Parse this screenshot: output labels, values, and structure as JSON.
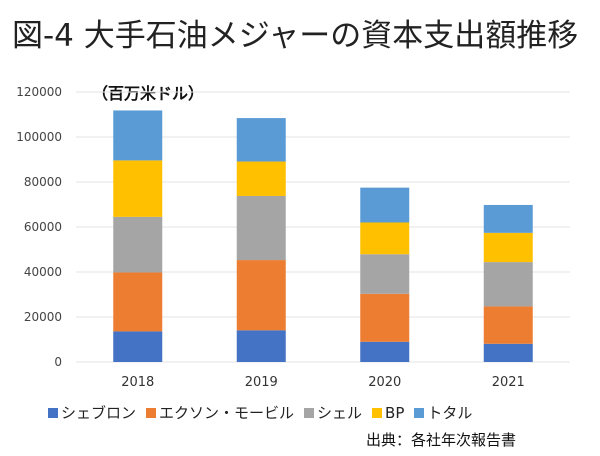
{
  "title": "図-4 大手石油メジャーの資本支出額推移",
  "unit_label": "（百万米ドル）",
  "source": "出典：各社年次報告書",
  "chart_data": {
    "type": "bar",
    "stacked": true,
    "categories": [
      "2018",
      "2019",
      "2020",
      "2021"
    ],
    "ylim": [
      0,
      120000
    ],
    "yticks": [
      0,
      20000,
      40000,
      60000,
      80000,
      100000,
      120000
    ],
    "grid": true,
    "legend_position": "bottom",
    "series": [
      {
        "name": "シェブロン",
        "color": "#4472C4",
        "values": [
          13600,
          14100,
          9000,
          8100
        ]
      },
      {
        "name": "エクソン・モービル",
        "color": "#ED7D31",
        "values": [
          26200,
          31200,
          21300,
          16600
        ]
      },
      {
        "name": "シェル",
        "color": "#A5A5A5",
        "values": [
          24700,
          28500,
          17600,
          19700
        ]
      },
      {
        "name": "BP",
        "color": "#FFC000",
        "values": [
          25100,
          15300,
          14100,
          13000
        ]
      },
      {
        "name": "トタル",
        "color": "#5B9BD5",
        "values": [
          22200,
          19300,
          15500,
          12400
        ]
      }
    ]
  }
}
